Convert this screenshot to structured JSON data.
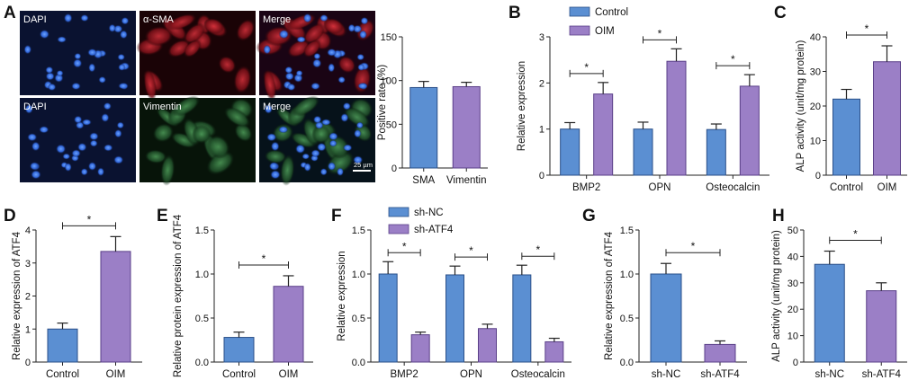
{
  "colors": {
    "control": "#5b8fd2",
    "treat": "#9b7fc6",
    "axis": "#222222",
    "err": "#222222"
  },
  "panel_letters": [
    "A",
    "B",
    "C",
    "D",
    "E",
    "F",
    "G",
    "H"
  ],
  "micrographs": {
    "labels": [
      "DAPI",
      "α-SMA",
      "Merge",
      "DAPI",
      "Vimentin",
      "Merge"
    ],
    "scale_bar": "25 µm"
  },
  "chart_data": [
    {
      "panel": "A",
      "type": "bar",
      "ylabel": "Positive rate (%)",
      "ylim": [
        0,
        150
      ],
      "yticks": [
        0,
        50,
        100,
        150
      ],
      "categories": [
        "SMA",
        "Vimentin"
      ],
      "series": [
        {
          "values": [
            92,
            93
          ],
          "errors": [
            7,
            5
          ]
        }
      ],
      "significance": []
    },
    {
      "panel": "B",
      "type": "bar",
      "ylabel": "Relative expression",
      "ylim": [
        0,
        3
      ],
      "yticks": [
        0,
        1,
        2,
        3
      ],
      "categories": [
        "BMP2",
        "OPN",
        "Osteocalcin"
      ],
      "series": [
        {
          "name": "Control",
          "values": [
            1.0,
            1.0,
            0.99
          ],
          "errors": [
            0.14,
            0.15,
            0.12
          ]
        },
        {
          "name": "OIM",
          "values": [
            1.76,
            2.47,
            1.93
          ],
          "errors": [
            0.25,
            0.27,
            0.25
          ]
        }
      ],
      "significance": [
        {
          "index": 0,
          "label": "*"
        },
        {
          "index": 1,
          "label": "*"
        },
        {
          "index": 2,
          "label": "*"
        }
      ]
    },
    {
      "panel": "C",
      "type": "bar",
      "ylabel": "ALP activity (unit/mg protein)",
      "ylim": [
        0,
        40
      ],
      "yticks": [
        0,
        10,
        20,
        30,
        40
      ],
      "categories": [
        "Control",
        "OIM"
      ],
      "series": [
        {
          "values": [
            22,
            32.8
          ],
          "errors": [
            2.8,
            4.6
          ]
        }
      ],
      "significance": [
        {
          "label": "*"
        }
      ]
    },
    {
      "panel": "D",
      "type": "bar",
      "ylabel": "Relative expression of ATF4",
      "ylim": [
        0,
        4
      ],
      "yticks": [
        0,
        1,
        2,
        3,
        4
      ],
      "categories": [
        "Control",
        "OIM"
      ],
      "series": [
        {
          "values": [
            1.0,
            3.35
          ],
          "errors": [
            0.18,
            0.45
          ]
        }
      ],
      "significance": [
        {
          "label": "*"
        }
      ]
    },
    {
      "panel": "E",
      "type": "bar",
      "ylabel": "Relative protein expression of ATF4",
      "ylim": [
        0,
        1.5
      ],
      "yticks": [
        0.0,
        0.5,
        1.0,
        1.5
      ],
      "categories": [
        "Control",
        "OIM"
      ],
      "series": [
        {
          "values": [
            0.28,
            0.86
          ],
          "errors": [
            0.06,
            0.12
          ]
        }
      ],
      "significance": [
        {
          "label": "*"
        }
      ]
    },
    {
      "panel": "F",
      "type": "bar",
      "ylabel": "Relative expression",
      "ylim": [
        0,
        1.5
      ],
      "yticks": [
        0.0,
        0.5,
        1.0,
        1.5
      ],
      "categories": [
        "BMP2",
        "OPN",
        "Osteocalcin"
      ],
      "series": [
        {
          "name": "sh-NC",
          "values": [
            1.0,
            0.99,
            0.99
          ],
          "errors": [
            0.14,
            0.1,
            0.11
          ]
        },
        {
          "name": "sh-ATF4",
          "values": [
            0.31,
            0.38,
            0.23
          ],
          "errors": [
            0.03,
            0.05,
            0.04
          ]
        }
      ],
      "significance": [
        {
          "index": 0,
          "label": "*"
        },
        {
          "index": 1,
          "label": "*"
        },
        {
          "index": 2,
          "label": "*"
        }
      ]
    },
    {
      "panel": "G",
      "type": "bar",
      "ylabel": "Relative expression of ATF4",
      "ylim": [
        0,
        1.5
      ],
      "yticks": [
        0.0,
        0.5,
        1.0,
        1.5
      ],
      "categories": [
        "sh-NC",
        "sh-ATF4"
      ],
      "series": [
        {
          "values": [
            1.0,
            0.2
          ],
          "errors": [
            0.12,
            0.04
          ]
        }
      ],
      "significance": [
        {
          "label": "*"
        }
      ]
    },
    {
      "panel": "H",
      "type": "bar",
      "ylabel": "ALP activity (unit/mg protein)",
      "ylim": [
        0,
        50
      ],
      "yticks": [
        0,
        10,
        20,
        30,
        40,
        50
      ],
      "categories": [
        "sh-NC",
        "sh-ATF4"
      ],
      "series": [
        {
          "values": [
            37,
            27
          ],
          "errors": [
            5,
            3
          ]
        }
      ],
      "significance": [
        {
          "label": "*"
        }
      ]
    }
  ]
}
